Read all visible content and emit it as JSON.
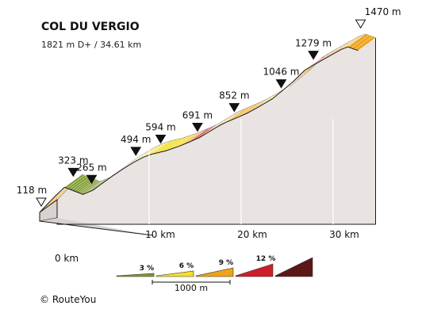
{
  "chart_data": {
    "type": "area",
    "title": "COL DU VERGIO",
    "subtitle": "1821 m D+ / 34.61 km",
    "xlabel": "",
    "ylabel": "",
    "x_unit": "km",
    "y_unit": "m",
    "xlim": [
      0,
      34.61
    ],
    "ylim": [
      118,
      1470
    ],
    "x_ticks": [
      {
        "value": 0,
        "label": "0 km"
      },
      {
        "value": 10,
        "label": "10 km"
      },
      {
        "value": 20,
        "label": "20 km"
      },
      {
        "value": 30,
        "label": "30 km"
      }
    ],
    "profile": [
      {
        "x": 0.0,
        "y": 118
      },
      {
        "x": 0.9,
        "y": 190
      },
      {
        "x": 1.8,
        "y": 260
      },
      {
        "x": 2.7,
        "y": 323
      },
      {
        "x": 3.5,
        "y": 300
      },
      {
        "x": 4.2,
        "y": 280
      },
      {
        "x": 4.7,
        "y": 265
      },
      {
        "x": 5.8,
        "y": 300
      },
      {
        "x": 6.9,
        "y": 360
      },
      {
        "x": 8.0,
        "y": 420
      },
      {
        "x": 9.0,
        "y": 470
      },
      {
        "x": 9.5,
        "y": 494
      },
      {
        "x": 10.3,
        "y": 530
      },
      {
        "x": 11.3,
        "y": 570
      },
      {
        "x": 12.2,
        "y": 594
      },
      {
        "x": 13.7,
        "y": 620
      },
      {
        "x": 15.2,
        "y": 660
      },
      {
        "x": 16.2,
        "y": 691
      },
      {
        "x": 17.4,
        "y": 730
      },
      {
        "x": 18.5,
        "y": 780
      },
      {
        "x": 19.6,
        "y": 830
      },
      {
        "x": 20.2,
        "y": 852
      },
      {
        "x": 21.4,
        "y": 890
      },
      {
        "x": 22.6,
        "y": 930
      },
      {
        "x": 23.8,
        "y": 980
      },
      {
        "x": 25.3,
        "y": 1046
      },
      {
        "x": 26.5,
        "y": 1120
      },
      {
        "x": 27.6,
        "y": 1190
      },
      {
        "x": 28.8,
        "y": 1279
      },
      {
        "x": 30.2,
        "y": 1340
      },
      {
        "x": 31.6,
        "y": 1400
      },
      {
        "x": 32.8,
        "y": 1450
      },
      {
        "x": 33.5,
        "y": 1470
      },
      {
        "x": 34.61,
        "y": 1440
      }
    ],
    "segment_gradients": [
      4,
      4,
      4,
      1,
      1,
      2,
      2,
      3,
      3,
      4,
      4,
      5,
      3,
      3,
      3,
      3,
      4,
      6,
      5,
      5,
      4,
      4,
      5,
      5,
      3,
      3,
      6,
      5,
      6,
      5,
      5,
      5,
      4
    ],
    "peaks": [
      {
        "x": 0.0,
        "elevation": "118 m",
        "marker": "start"
      },
      {
        "x": 2.7,
        "elevation": "323 m",
        "marker": "peak"
      },
      {
        "x": 4.7,
        "elevation": "265 m",
        "marker": "peak"
      },
      {
        "x": 9.5,
        "elevation": "494 m",
        "marker": "peak"
      },
      {
        "x": 12.2,
        "elevation": "594 m",
        "marker": "peak"
      },
      {
        "x": 16.2,
        "elevation": "691 m",
        "marker": "peak"
      },
      {
        "x": 20.2,
        "elevation": "852 m",
        "marker": "peak"
      },
      {
        "x": 25.3,
        "elevation": "1046 m",
        "marker": "peak"
      },
      {
        "x": 28.8,
        "elevation": "1279 m",
        "marker": "peak"
      },
      {
        "x": 33.5,
        "elevation": "1470 m",
        "marker": "summit"
      }
    ],
    "legend": {
      "placement": "bottom-center",
      "items": [
        {
          "label": "3 %",
          "color": "#7f9a2e"
        },
        {
          "label": "6 %",
          "color": "#f4de2a"
        },
        {
          "label": "9 %",
          "color": "#eda319"
        },
        {
          "label": "12 %",
          "color": "#cc1f27"
        },
        {
          "label": "",
          "color": "#5c1717"
        }
      ],
      "scale_label": "1000 m"
    },
    "colors": {
      "grade_3": "#7f9a2e",
      "grade_6": "#f4de2a",
      "grade_9": "#eda319",
      "grade_12": "#cc1f27",
      "grade_max": "#5c1717",
      "wall": "#e9e4e2",
      "base": "#d8d3d1",
      "outline": "#1a1a1a"
    }
  },
  "copyright": "© RouteYou"
}
